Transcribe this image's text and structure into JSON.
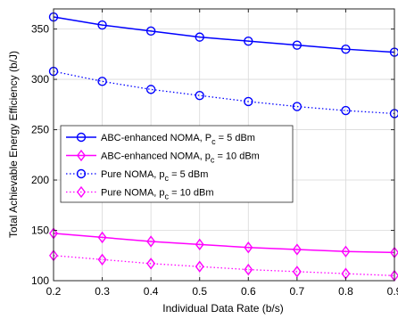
{
  "chart_data": {
    "type": "line",
    "xlabel": "Individual Data Rate (b/s)",
    "ylabel": "Total Achievable Energy Efficiency (b/J)",
    "xlim": [
      0.2,
      0.9
    ],
    "ylim": [
      100,
      370
    ],
    "xticks": [
      "0.2",
      "0.3",
      "0.4",
      "0.5",
      "0.6",
      "0.7",
      "0.8",
      "0.9"
    ],
    "yticks": [
      "100",
      "150",
      "200",
      "250",
      "300",
      "350"
    ],
    "grid": true,
    "legend_position": "middle-left",
    "x": [
      0.2,
      0.3,
      0.4,
      0.5,
      0.6,
      0.7,
      0.8,
      0.9
    ],
    "series": [
      {
        "label_main": "ABC-enhanced NOMA, P",
        "label_sub": "c",
        "label_tail": " = 5 dBm",
        "color": "#0000ff",
        "line": "solid",
        "marker": "circle",
        "values": [
          362,
          354,
          348,
          342,
          338,
          334,
          330,
          327
        ]
      },
      {
        "label_main": "ABC-enhanced NOMA, p",
        "label_sub": "c",
        "label_tail": " = 10 dBm",
        "color": "#ff00ff",
        "line": "solid",
        "marker": "diamond",
        "values": [
          147,
          143,
          139,
          136,
          133,
          131,
          129,
          128
        ]
      },
      {
        "label_main": "Pure NOMA, p",
        "label_sub": "c",
        "label_tail": " = 5 dBm",
        "color": "#0000ff",
        "line": "dotted",
        "marker": "circle",
        "values": [
          308,
          298,
          290,
          284,
          278,
          273,
          269,
          266
        ]
      },
      {
        "label_main": "Pure NOMA, p",
        "label_sub": "c",
        "label_tail": " = 10 dBm",
        "color": "#ff00ff",
        "line": "dotted",
        "marker": "diamond",
        "values": [
          125,
          121,
          117,
          114,
          111,
          109,
          107,
          105
        ]
      }
    ]
  }
}
